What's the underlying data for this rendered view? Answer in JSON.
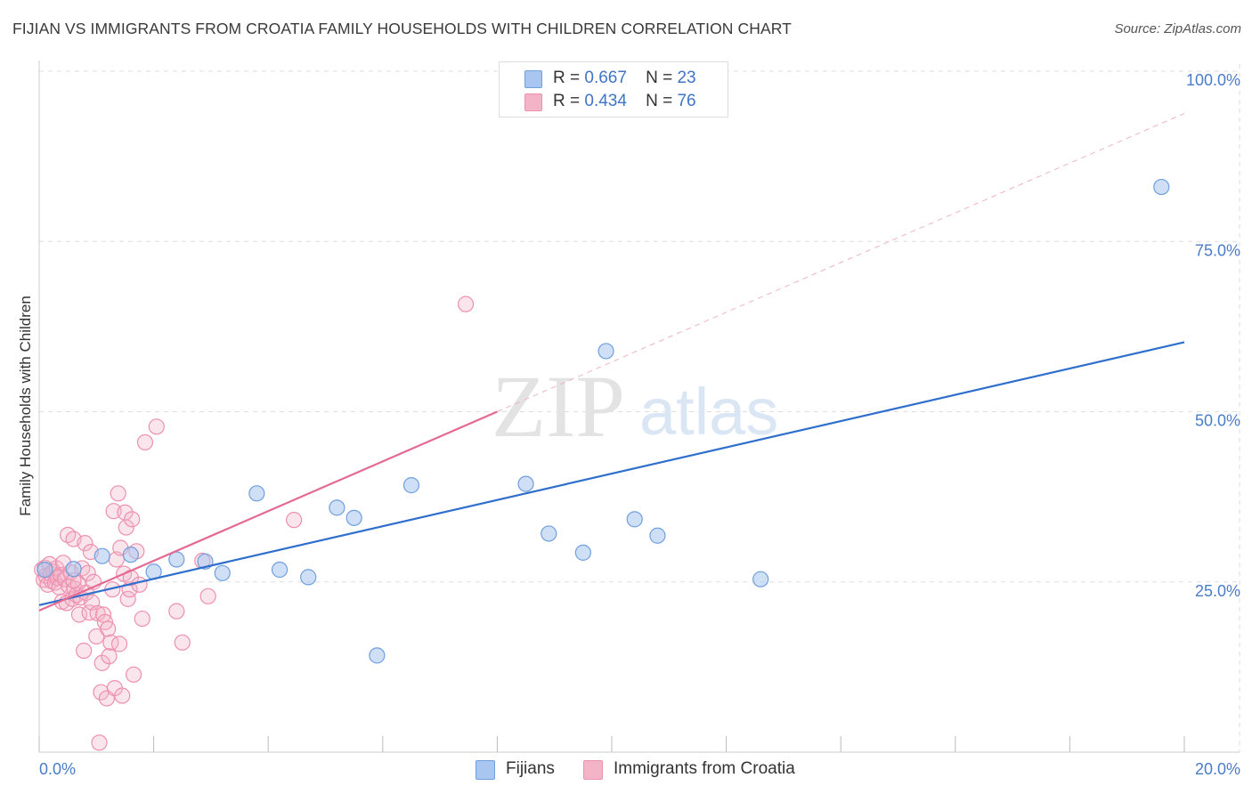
{
  "title": "FIJIAN VS IMMIGRANTS FROM CROATIA FAMILY HOUSEHOLDS WITH CHILDREN CORRELATION CHART",
  "source": "Source: ZipAtlas.com",
  "watermark": {
    "zip": "ZIP",
    "atlas": "atlas"
  },
  "legend": {
    "r_label": "R =",
    "n_label": "N =",
    "fijians": {
      "r": "0.667",
      "n": "23",
      "color": "#a8c6ef"
    },
    "croatia": {
      "r": "0.434",
      "n": "76",
      "color": "#f4b4c8"
    }
  },
  "bottom_legend": {
    "fijians": "Fijians",
    "croatia": "Immigrants from Croatia"
  },
  "colors": {
    "fijian_fill": "rgba(168,198,239,0.55)",
    "fijian_stroke": "#6f9fde",
    "fijian_line": "#2f6fcc",
    "croatia_fill": "rgba(244,180,200,0.35)",
    "croatia_stroke": "#ec90af",
    "croatia_line": "#e46a94",
    "tick_label": "#4a7cc9",
    "grid": "#dedede"
  },
  "chart_data": {
    "type": "scatter",
    "xlabel": "",
    "ylabel": "Family Households with Children",
    "xlim": [
      0,
      20
    ],
    "ylim": [
      0,
      100
    ],
    "x_tick_labels": [
      {
        "value": 0,
        "label": "0.0%"
      },
      {
        "value": 20,
        "label": "20.0%"
      }
    ],
    "y_tick_labels": [
      {
        "value": 25,
        "label": "25.0%"
      },
      {
        "value": 50,
        "label": "50.0%"
      },
      {
        "value": 75,
        "label": "75.0%"
      },
      {
        "value": 100,
        "label": "100.0%"
      }
    ],
    "series": [
      {
        "name": "Fijians",
        "points": [
          [
            1.1,
            28.8
          ],
          [
            1.6,
            29.0
          ],
          [
            2.0,
            26.5
          ],
          [
            2.4,
            28.3
          ],
          [
            2.9,
            28.0
          ],
          [
            3.2,
            26.3
          ],
          [
            3.8,
            38.0
          ],
          [
            4.2,
            26.8
          ],
          [
            4.7,
            25.7
          ],
          [
            5.2,
            35.9
          ],
          [
            5.5,
            34.4
          ],
          [
            5.9,
            14.2
          ],
          [
            6.5,
            39.2
          ],
          [
            8.5,
            39.4
          ],
          [
            8.9,
            32.1
          ],
          [
            9.5,
            29.3
          ],
          [
            9.9,
            58.9
          ],
          [
            10.4,
            34.2
          ],
          [
            10.8,
            31.8
          ],
          [
            12.6,
            25.4
          ],
          [
            19.6,
            83.0
          ],
          [
            0.1,
            26.8
          ],
          [
            0.6,
            26.9
          ]
        ],
        "trend": {
          "x": [
            0,
            20
          ],
          "y": [
            21.6,
            60.2
          ]
        }
      },
      {
        "name": "Immigrants from Croatia",
        "points": [
          [
            0.05,
            26.8
          ],
          [
            0.08,
            25.3
          ],
          [
            0.1,
            27.1
          ],
          [
            0.12,
            25.9
          ],
          [
            0.15,
            24.6
          ],
          [
            0.18,
            27.6
          ],
          [
            0.2,
            26.2
          ],
          [
            0.22,
            25.1
          ],
          [
            0.25,
            26.5
          ],
          [
            0.28,
            24.9
          ],
          [
            0.3,
            27.0
          ],
          [
            0.32,
            25.6
          ],
          [
            0.35,
            24.2
          ],
          [
            0.38,
            26.0
          ],
          [
            0.4,
            22.1
          ],
          [
            0.42,
            27.8
          ],
          [
            0.45,
            25.4
          ],
          [
            0.48,
            21.9
          ],
          [
            0.5,
            31.9
          ],
          [
            0.52,
            24.4
          ],
          [
            0.55,
            26.4
          ],
          [
            0.58,
            22.5
          ],
          [
            0.6,
            31.3
          ],
          [
            0.62,
            24.0
          ],
          [
            0.65,
            23.1
          ],
          [
            0.68,
            24.8
          ],
          [
            0.7,
            20.2
          ],
          [
            0.72,
            22.7
          ],
          [
            0.75,
            27.0
          ],
          [
            0.78,
            14.9
          ],
          [
            0.8,
            30.7
          ],
          [
            0.82,
            23.4
          ],
          [
            0.85,
            26.3
          ],
          [
            0.88,
            20.5
          ],
          [
            0.9,
            29.4
          ],
          [
            0.92,
            22.0
          ],
          [
            0.95,
            25.0
          ],
          [
            1.0,
            17.0
          ],
          [
            1.02,
            20.4
          ],
          [
            1.05,
            1.4
          ],
          [
            1.08,
            8.8
          ],
          [
            1.1,
            13.1
          ],
          [
            1.12,
            20.2
          ],
          [
            1.15,
            19.1
          ],
          [
            1.18,
            7.9
          ],
          [
            1.2,
            18.1
          ],
          [
            1.22,
            14.1
          ],
          [
            1.25,
            16.1
          ],
          [
            1.28,
            23.9
          ],
          [
            1.3,
            35.4
          ],
          [
            1.32,
            9.4
          ],
          [
            1.35,
            28.3
          ],
          [
            1.38,
            38.0
          ],
          [
            1.4,
            15.9
          ],
          [
            1.42,
            30.0
          ],
          [
            1.45,
            8.3
          ],
          [
            1.48,
            26.2
          ],
          [
            1.5,
            35.2
          ],
          [
            1.52,
            33.0
          ],
          [
            1.55,
            22.5
          ],
          [
            1.58,
            23.9
          ],
          [
            1.6,
            25.6
          ],
          [
            1.62,
            34.2
          ],
          [
            1.65,
            11.4
          ],
          [
            1.7,
            29.5
          ],
          [
            1.75,
            24.6
          ],
          [
            1.8,
            19.6
          ],
          [
            1.85,
            45.5
          ],
          [
            2.05,
            47.8
          ],
          [
            2.4,
            20.7
          ],
          [
            2.5,
            16.1
          ],
          [
            2.85,
            28.1
          ],
          [
            2.95,
            22.9
          ],
          [
            4.45,
            34.1
          ],
          [
            7.45,
            65.8
          ],
          [
            0.6,
            25.2
          ]
        ],
        "trend": {
          "x": [
            0,
            8
          ],
          "y": [
            20.8,
            50.0
          ]
        },
        "trend_extension": {
          "x": [
            8,
            20
          ],
          "y": [
            50.0,
            93.8
          ]
        }
      }
    ]
  }
}
